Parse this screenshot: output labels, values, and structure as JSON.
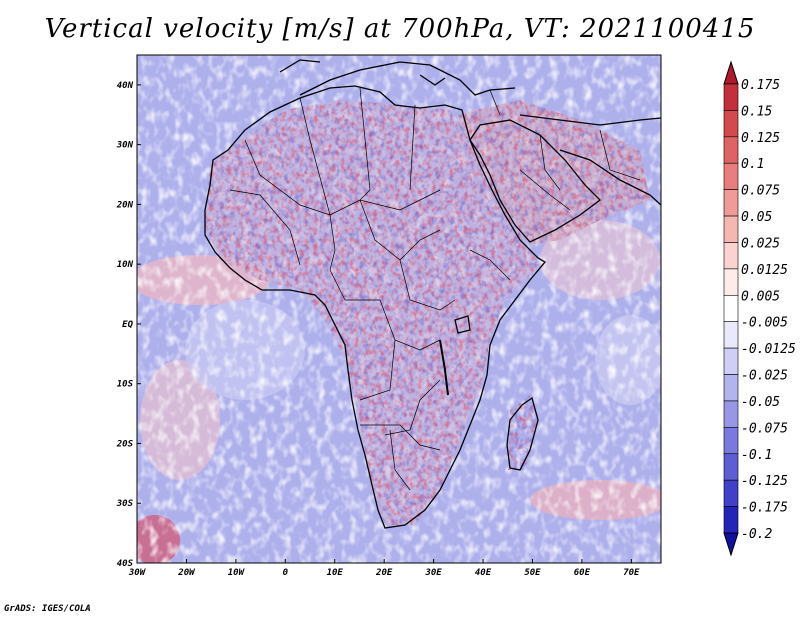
{
  "title": "Vertical velocity [m/s] at 700hPa, VT: 2021100415",
  "credit": "GrADS: IGES/COLA",
  "chart_data": {
    "type": "heatmap",
    "title": "Vertical velocity [m/s] at 700hPa, VT: 2021100415",
    "variable": "Vertical velocity",
    "units": "m/s",
    "level": "700hPa",
    "valid_time": "2021100415",
    "lon_range": [
      -30,
      76
    ],
    "lat_range": [
      -40,
      45
    ],
    "x_ticks": [
      "30W",
      "20W",
      "10W",
      "0",
      "10E",
      "20E",
      "30E",
      "40E",
      "50E",
      "60E",
      "70E"
    ],
    "x_tick_values": [
      -30,
      -20,
      -10,
      0,
      10,
      20,
      30,
      40,
      50,
      60,
      70
    ],
    "y_ticks": [
      "40N",
      "30N",
      "20N",
      "10N",
      "EQ",
      "10S",
      "20S",
      "30S",
      "40S"
    ],
    "y_tick_values": [
      40,
      30,
      20,
      10,
      0,
      -10,
      -20,
      -30,
      -40
    ],
    "colorbar": {
      "levels": [
        "0.175",
        "0.15",
        "0.125",
        "0.1",
        "0.075",
        "0.05",
        "0.025",
        "0.0125",
        "0.005",
        "-0.005",
        "-0.0125",
        "-0.025",
        "-0.05",
        "-0.075",
        "-0.1",
        "-0.125",
        "-0.175",
        "-0.2"
      ],
      "colors": [
        "#b2182b",
        "#c3303c",
        "#d34a4d",
        "#df6364",
        "#e87f7e",
        "#f09b98",
        "#f6b7b3",
        "#fad3d0",
        "#fdecea",
        "#ffffff",
        "#e9e9fb",
        "#cfcff5",
        "#b3b3ee",
        "#9797e6",
        "#7a7ade",
        "#5e5ed4",
        "#4040c8",
        "#2424b8",
        "#1010a0"
      ]
    }
  }
}
